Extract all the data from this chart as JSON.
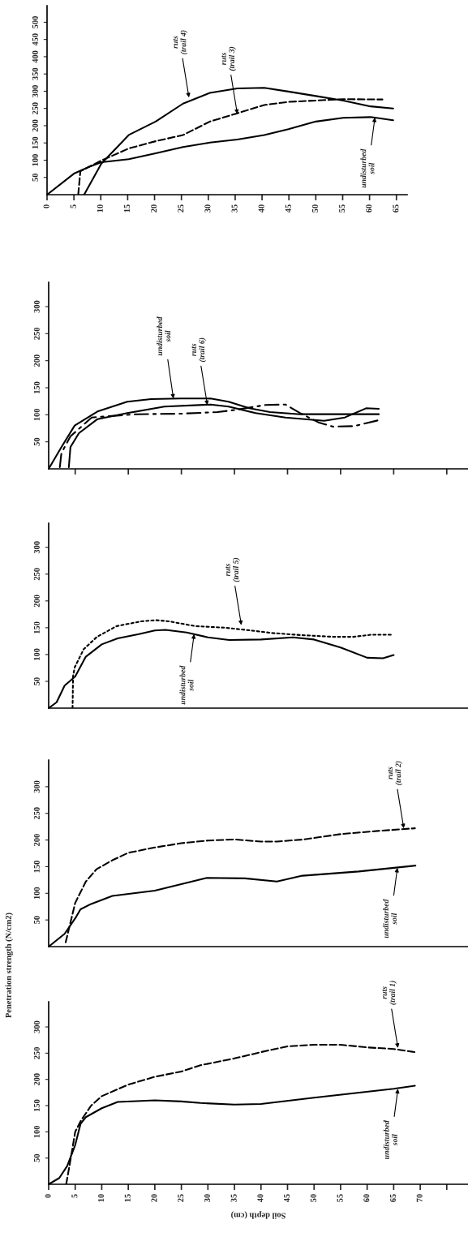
{
  "chart_data": [
    {
      "type": "line",
      "xlim": [
        0,
        67
      ],
      "xticks": [
        0,
        5,
        10,
        15,
        20,
        25,
        30,
        35,
        40,
        45,
        50,
        55,
        60,
        65
      ],
      "ylim": [
        0,
        548
      ],
      "yticks": [
        50,
        100,
        150,
        200,
        250,
        300,
        350,
        400,
        450,
        500
      ],
      "series": [
        {
          "color": "#000000",
          "line_style": "solid",
          "x": [
            0,
            5,
            7.9,
            10.1,
            15.2,
            20.2,
            25.3,
            30.3,
            35.4,
            40.4,
            44.9,
            50,
            55.1,
            60.2,
            64.4
          ],
          "values": [
            0,
            61,
            81,
            94,
            103,
            120,
            138,
            151,
            160,
            173,
            190,
            212,
            223,
            225,
            216
          ]
        },
        {
          "color": "#000000",
          "line_style": "solid",
          "x": [
            6.9,
            10.1,
            15.2,
            20.2,
            25.3,
            30.3,
            35.4,
            40.4,
            44.9,
            50,
            55.1,
            60.2,
            64.4
          ],
          "values": [
            0,
            90,
            173,
            212,
            264,
            295,
            308,
            310,
            299,
            286,
            273,
            256,
            250
          ]
        },
        {
          "color": "#000000",
          "line_style": "dashed",
          "x": [
            5.8,
            6.2,
            10.1,
            15.2,
            20.2,
            25.3,
            30.3,
            35.4,
            40.4,
            44.9,
            50,
            55.1,
            62.4
          ],
          "values": [
            0,
            68,
            99,
            134,
            155,
            173,
            212,
            236,
            260,
            269,
            273,
            277,
            276
          ]
        }
      ],
      "annotations": [
        {
          "text": "ruts\n(trail 4)",
          "x": 26.4,
          "y": 282
        },
        {
          "text": "ruts\n(trail 3)",
          "x": 35.4,
          "y": 234
        },
        {
          "text": "undisturbed\nsoil",
          "x": 61,
          "y": 224
        }
      ]
    },
    {
      "type": "line",
      "xlim": [
        0,
        79
      ],
      "xticks": [
        {
          "value": 5,
          "label": null
        },
        {
          "value": 15,
          "label": null
        },
        {
          "value": 25,
          "label": null
        },
        {
          "value": 35,
          "label": null
        },
        {
          "value": 45,
          "label": null
        },
        {
          "value": 55,
          "label": null
        },
        {
          "value": 65,
          "label": null
        },
        {
          "value": 75,
          "label": null
        }
      ],
      "ylim": [
        0,
        345
      ],
      "yticks": [
        50,
        100,
        150,
        200,
        250,
        300
      ],
      "tick_labels": "y",
      "series": [
        {
          "color": "#000000",
          "line_style": "solid",
          "x": [
            0,
            2.4,
            4.9,
            9.2,
            14.8,
            19.3,
            24.9,
            30.5,
            33.9,
            37.8,
            41.7,
            47.4,
            53,
            62.2
          ],
          "values": [
            0,
            40,
            80,
            106,
            124,
            129,
            130,
            130,
            124,
            112,
            105,
            101,
            101,
            101
          ]
        },
        {
          "color": "#000000",
          "line_style": "solid",
          "x": [
            3.8,
            4.1,
            5.7,
            9.2,
            14.8,
            21.8,
            30.5,
            33.9,
            39,
            44.6,
            51.9,
            55.8,
            59.8,
            62.2
          ],
          "values": [
            3,
            40,
            66,
            92,
            103,
            115,
            119,
            115,
            103,
            95,
            89,
            95,
            112,
            111
          ]
        },
        {
          "color": "#000000",
          "line_style": "dashdot",
          "x": [
            2.1,
            2.4,
            4.1,
            8.1,
            16.5,
            24.9,
            31.8,
            35.2,
            40.8,
            44.6,
            47.4,
            50.8,
            53.6,
            57.5,
            62.2
          ],
          "values": [
            3,
            29,
            60,
            95,
            101,
            102,
            105,
            109,
            118,
            119,
            103,
            86,
            78,
            79,
            90
          ]
        }
      ],
      "annotations": [
        {
          "text": "undisturbed\nsoil",
          "x": 23.5,
          "y": 130
        },
        {
          "text": "ruts\n(trail 6)",
          "x": 29.9,
          "y": 118
        }
      ]
    },
    {
      "type": "line",
      "xlim": [
        0,
        79
      ],
      "ylim": [
        0,
        345
      ],
      "yticks": [
        50,
        100,
        150,
        200,
        250,
        300
      ],
      "tick_labels": "y",
      "series": [
        {
          "color": "#000000",
          "line_style": "solid",
          "x": [
            0,
            1.5,
            3,
            5,
            7,
            10,
            13,
            17,
            20,
            22,
            26,
            30,
            34,
            40,
            46,
            50,
            55,
            60,
            63,
            65
          ],
          "values": [
            0,
            11,
            42,
            59,
            96,
            119,
            130,
            138,
            145,
            146,
            141,
            132,
            127,
            128,
            132,
            128,
            113,
            94,
            93,
            99
          ]
        },
        {
          "color": "#000000",
          "line_style": "dotted",
          "x": [
            4.5,
            4.6,
            4.9,
            6.6,
            9.1,
            12.8,
            17.5,
            20.3,
            22.6,
            27.6,
            33.3,
            38.9,
            42.2,
            47.9,
            53.8,
            57.4,
            60.8,
            64.7
          ],
          "values": [
            0,
            60,
            76,
            110,
            133,
            153,
            162,
            164,
            162,
            153,
            150,
            144,
            140,
            136,
            133,
            133,
            137,
            137
          ]
        }
      ],
      "annotations": [
        {
          "text": "ruts\n(trail 5)",
          "x": 36.3,
          "y": 155
        },
        {
          "text": "undisturbed\nsoil",
          "x": 27.4,
          "y": 138
        }
      ]
    },
    {
      "type": "line",
      "xlim": [
        0,
        79
      ],
      "ylim": [
        0,
        350
      ],
      "yticks": [
        50,
        100,
        150,
        200,
        250,
        300
      ],
      "tick_labels": "y",
      "series": [
        {
          "color": "#000000",
          "line_style": "solid",
          "x": [
            0,
            3,
            5,
            6,
            8,
            12,
            20,
            29.8,
            37,
            43,
            47.8,
            58.4,
            69.1
          ],
          "values": [
            0,
            24,
            53,
            70,
            80,
            95,
            105,
            129,
            128,
            122,
            133,
            141,
            152
          ]
        },
        {
          "color": "#000000",
          "line_style": "dashed",
          "x": [
            3.2,
            4,
            5,
            7,
            9,
            12,
            15,
            20,
            25,
            30,
            35,
            40,
            43,
            48,
            55,
            62,
            69
          ],
          "values": [
            8,
            41,
            82,
            122,
            145,
            162,
            176,
            186,
            194,
            199,
            201,
            197,
            197,
            201,
            211,
            217,
            222
          ]
        }
      ],
      "annotations": [
        {
          "text": "ruts\n(trail 2)",
          "x": 66.9,
          "y": 222
        },
        {
          "text": "undisturbed\nsoil",
          "x": 65.7,
          "y": 148
        }
      ]
    },
    {
      "type": "line",
      "xlabel": "Soil depth (cm)",
      "ylabel": "Penetration strength (N/cm2)",
      "xlim": [
        0,
        79
      ],
      "xticks": [
        0,
        5,
        10,
        15,
        20,
        25,
        30,
        35,
        40,
        45,
        50,
        55,
        60,
        65,
        70,
        {
          "value": 75,
          "label": null
        }
      ],
      "ylim": [
        0,
        348
      ],
      "yticks": [
        50,
        100,
        150,
        200,
        250,
        300
      ],
      "series": [
        {
          "color": "#000000",
          "line_style": "solid",
          "x": [
            0,
            2,
            3.5,
            5,
            6,
            7,
            10,
            13,
            20,
            25,
            28.6,
            35,
            40,
            50,
            65,
            69
          ],
          "values": [
            0,
            12,
            35,
            75,
            115,
            128,
            145,
            157,
            160,
            158,
            155,
            152,
            153,
            165,
            182,
            188
          ]
        },
        {
          "color": "#000000",
          "line_style": "dashed",
          "x": [
            3.3,
            4,
            5,
            6,
            8,
            10,
            15,
            20,
            25,
            28.6,
            35,
            40,
            45,
            50,
            55,
            60,
            65,
            69
          ],
          "values": [
            0,
            40,
            100,
            120,
            150,
            168,
            190,
            205,
            215,
            227,
            240,
            252,
            263,
            266,
            266,
            261,
            258,
            252
          ]
        }
      ],
      "annotations": [
        {
          "text": "ruts\n(trail 1)",
          "x": 65.8,
          "y": 260
        },
        {
          "text": "undisturbed\nsoil",
          "x": 65.8,
          "y": 182
        }
      ]
    }
  ]
}
